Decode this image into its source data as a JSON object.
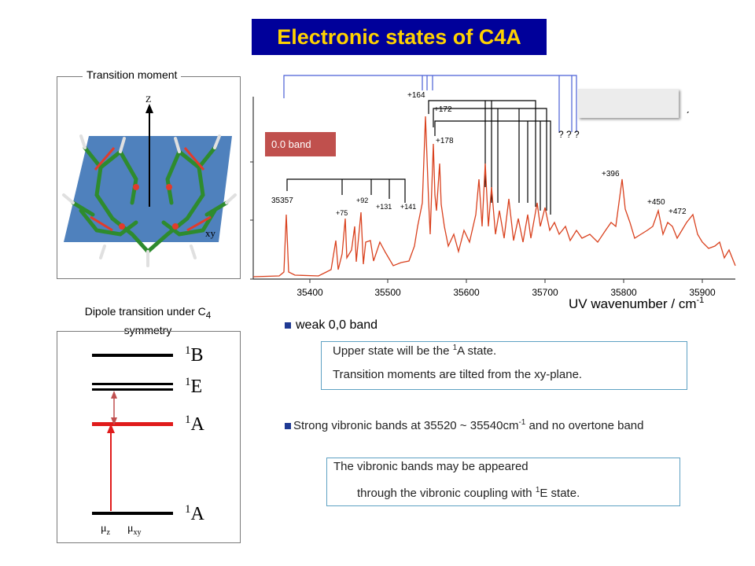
{
  "title": "Electronic states of C4A",
  "transition_moment_panel": {
    "label": "Transition moment",
    "axis_z": "Z",
    "plane_label": "xy"
  },
  "dipole_panel": {
    "title_pre": "Dipole transition under C",
    "title_sub": "4",
    "title_post": "symmetry",
    "levels": [
      {
        "sup": "1",
        "name": "B"
      },
      {
        "sup": "1",
        "name": "E"
      },
      {
        "sup": "1",
        "name": "A"
      },
      {
        "sup": "1",
        "name": "A"
      }
    ],
    "mu_z": {
      "symbol": "μ",
      "sub": "z"
    },
    "mu_xy": {
      "symbol": "μ",
      "sub": "xy"
    }
  },
  "spectrum": {
    "band_label": "0.0 band",
    "question_marks": "? ? ?",
    "comma_mark": "ˏ",
    "peak_labels": [
      "+164",
      "+172",
      "+178",
      "35357",
      "+92",
      "+75",
      "+131",
      "+141",
      "+396",
      "+450",
      "+472"
    ],
    "x_ticks": [
      "35400",
      "35500",
      "35600",
      "35700",
      "35800",
      "35900"
    ],
    "x_axis_label": "UV wavenumber / cm",
    "x_axis_label_sup": "-1"
  },
  "notes": {
    "weak_band": "weak 0,0 band",
    "upper_state_pre": "Upper state will be the ",
    "upper_state_sup": "1",
    "upper_state_post": "A state.",
    "tilted": "Transition moments are tilted from the xy-plane.",
    "strong_pre": "Strong vibronic bands at 35520 ~ 35540cm",
    "strong_sup": "-1",
    "strong_post": " and no overtone band",
    "vibronic_line1": "The vibronic bands may be appeared",
    "vibronic_line2_pre": "through the vibronic coupling with ",
    "vibronic_line2_sup": "1",
    "vibronic_line2_post": "E state."
  },
  "colors": {
    "title_bg": "#00009a",
    "title_text": "#ffd200",
    "spectrum": "#d9411e",
    "band_box": "#c0504d",
    "plane": "#4f81bd"
  }
}
